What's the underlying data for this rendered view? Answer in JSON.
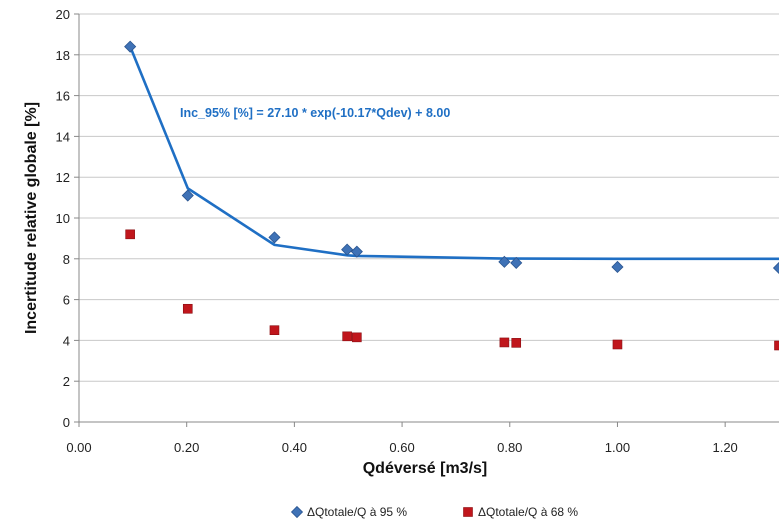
{
  "chart_data": {
    "type": "scatter",
    "xlabel": "Qdéversé [m3/s]",
    "ylabel": "Incertitude relative globale [%]",
    "xlim": [
      0,
      1.3
    ],
    "ylim": [
      0,
      20
    ],
    "xticks": [
      "0.00",
      "0.20",
      "0.40",
      "0.60",
      "0.80",
      "1.00",
      "1.20"
    ],
    "yticks": [
      "0",
      "2",
      "4",
      "6",
      "8",
      "10",
      "12",
      "14",
      "16",
      "18",
      "20"
    ],
    "grid": "horizontal",
    "legend_position": "bottom",
    "annotation": "Inc_95% [%] = 27.10 * exp(-10.17*Qdev) + 8.00",
    "series": [
      {
        "name": "ΔQtotale/Q à 95  %",
        "marker": "diamond",
        "color": "#3f72b6",
        "x": [
          0.095,
          0.202,
          0.363,
          0.498,
          0.516,
          0.79,
          0.812,
          1.0,
          1.3
        ],
        "y": [
          18.4,
          11.1,
          9.05,
          8.45,
          8.35,
          7.85,
          7.8,
          7.6,
          7.55
        ]
      },
      {
        "name": "ΔQtotale/Q à 68 %",
        "marker": "square",
        "color": "#c0161c",
        "x": [
          0.095,
          0.202,
          0.363,
          0.498,
          0.516,
          0.79,
          0.812,
          1.0,
          1.3
        ],
        "y": [
          9.2,
          5.55,
          4.5,
          4.2,
          4.15,
          3.9,
          3.88,
          3.8,
          3.75
        ]
      }
    ],
    "fit_line": {
      "color": "#1f6fc4",
      "x": [
        0.095,
        0.202,
        0.363,
        0.498,
        0.516,
        0.79,
        0.812,
        1.0,
        1.3
      ],
      "y": [
        18.4,
        11.45,
        8.68,
        8.17,
        8.14,
        8.01,
        8.01,
        8.0,
        8.0
      ]
    }
  }
}
